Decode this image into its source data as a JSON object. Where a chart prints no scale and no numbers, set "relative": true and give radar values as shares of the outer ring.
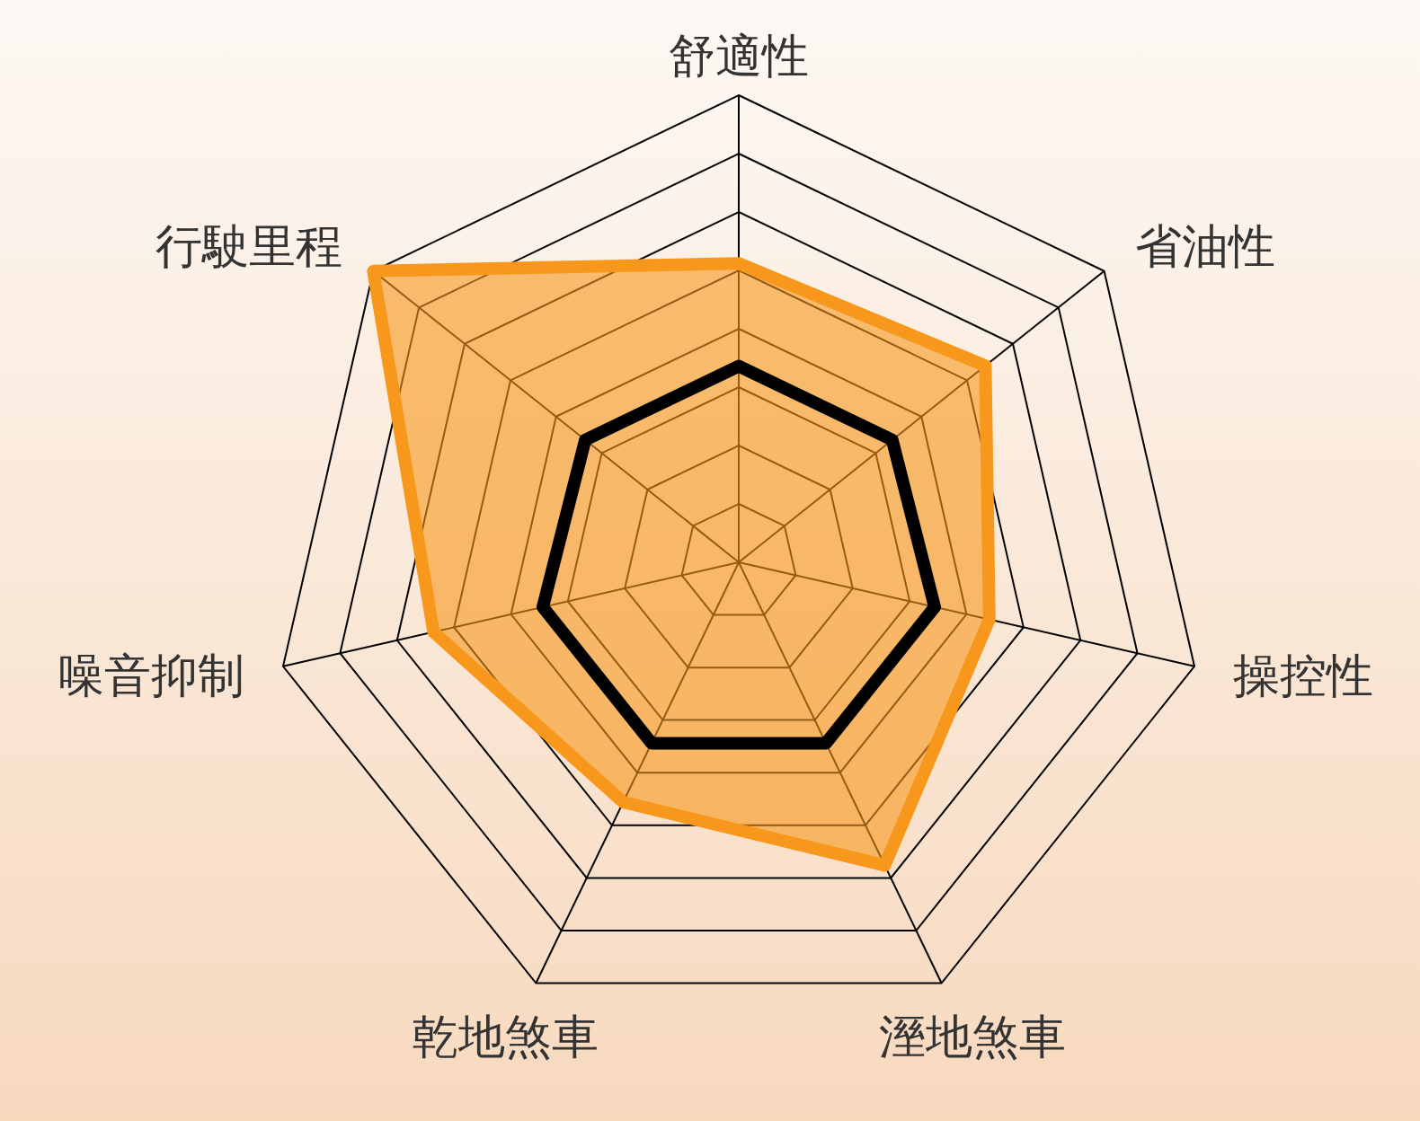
{
  "chart_data": {
    "type": "radar",
    "relative": true,
    "categories": [
      "舒適性",
      "省油性",
      "操控性",
      "溼地煞車",
      "乾地煞車",
      "噪音抑制",
      "行駛里程"
    ],
    "series": [
      {
        "color": "#f7981d",
        "values": [
          0.64,
          0.675,
          0.55,
          0.72,
          0.57,
          0.67,
          1.0
        ]
      },
      {
        "color": "#000000",
        "values": [
          0.42,
          0.42,
          0.43,
          0.43,
          0.43,
          0.43,
          0.42
        ]
      }
    ]
  }
}
